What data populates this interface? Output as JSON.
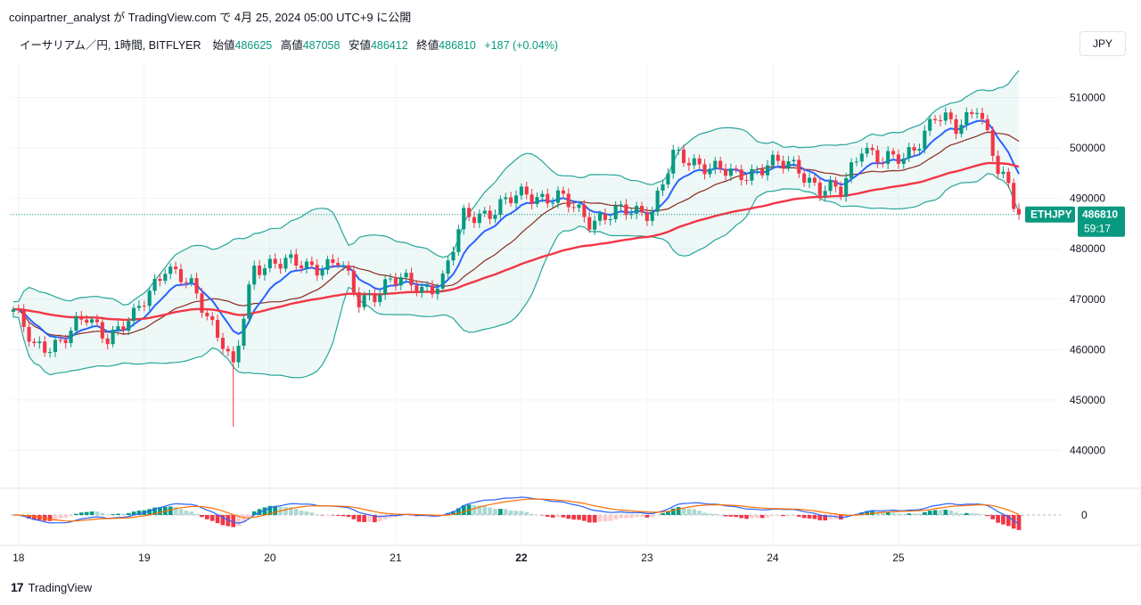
{
  "header": {
    "share_text": "coinpartner_analyst が TradingView.com で 4月 25, 2024 05:00 UTC+9 に公開"
  },
  "legend": {
    "symbol": "イーサリアム／円, 1時間, BITFLYER",
    "open_label": "始値",
    "open": "486625",
    "high_label": "高値",
    "high": "487058",
    "low_label": "安値",
    "low": "486412",
    "close_label": "終値",
    "close": "486810",
    "change": "+187 (+0.04%)"
  },
  "currency_button": "JPY",
  "price_tag": {
    "ticker": "ETHJPY",
    "price": "486810",
    "countdown": "59:17"
  },
  "footer": {
    "brand": "TradingView",
    "logo": "17"
  },
  "colors": {
    "up": "#089981",
    "down": "#f23645",
    "ma_blue": "#2962ff",
    "ma_red": "#f23645",
    "ma_brown": "#8b2a1e",
    "band": "#26a69a",
    "macd": "#2962ff",
    "signal": "#ff6d00"
  },
  "chart_data": {
    "type": "candlestick",
    "x_tick_labels": [
      "18",
      "19",
      "20",
      "21",
      "22",
      "23",
      "24",
      "25"
    ],
    "y_ticks": [
      440000,
      450000,
      460000,
      470000,
      480000,
      490000,
      500000,
      510000
    ],
    "y_tick_labels": [
      "440000",
      "450000",
      "460000",
      "470000",
      "480000",
      "490000",
      "500000",
      "510000"
    ],
    "ylim": [
      433000,
      517000
    ],
    "current_price": 486810,
    "indicator_zero_label": "0",
    "trend": [
      [
        0,
        468000
      ],
      [
        4,
        460000
      ],
      [
        9,
        462000
      ],
      [
        14,
        466000
      ],
      [
        18,
        463000
      ],
      [
        23,
        466000
      ],
      [
        29,
        477000
      ],
      [
        34,
        472000
      ],
      [
        40,
        462000
      ],
      [
        42,
        456000
      ],
      [
        46,
        476000
      ],
      [
        50,
        478000
      ],
      [
        56,
        476000
      ],
      [
        62,
        478000
      ],
      [
        66,
        469000
      ],
      [
        72,
        474000
      ],
      [
        78,
        472000
      ],
      [
        82,
        474000
      ],
      [
        86,
        486000
      ],
      [
        92,
        488000
      ],
      [
        98,
        491000
      ],
      [
        104,
        490000
      ],
      [
        110,
        486000
      ],
      [
        116,
        487000
      ],
      [
        122,
        488000
      ],
      [
        126,
        498000
      ],
      [
        132,
        497000
      ],
      [
        138,
        494000
      ],
      [
        144,
        497000
      ],
      [
        150,
        496000
      ],
      [
        154,
        492000
      ],
      [
        158,
        491000
      ],
      [
        162,
        501000
      ],
      [
        166,
        497000
      ],
      [
        170,
        498000
      ],
      [
        176,
        506000
      ],
      [
        180,
        504000
      ],
      [
        184,
        509000
      ],
      [
        188,
        495000
      ],
      [
        190,
        492000
      ],
      [
        192,
        486810
      ]
    ]
  }
}
